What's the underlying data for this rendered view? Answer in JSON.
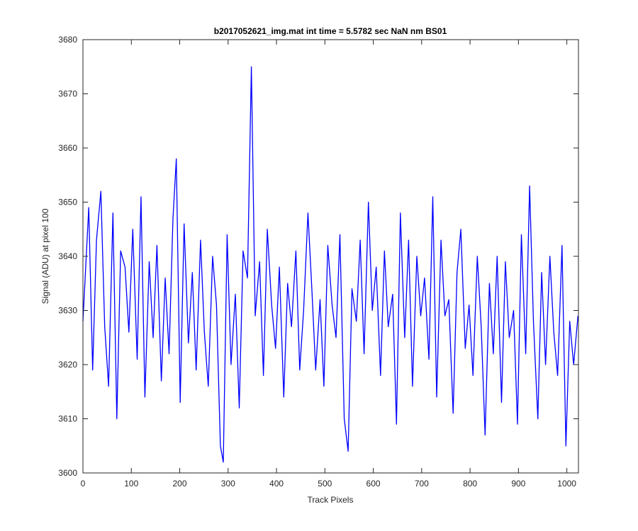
{
  "chart_data": {
    "type": "line",
    "title": "b2017052621_img.mat int time = 5.5782 sec  NaN nm BS01",
    "xlabel": "Track Pixels",
    "ylabel": "Signal (ADU) at pixel 100",
    "xlim": [
      0,
      1024
    ],
    "ylim": [
      3600,
      3680
    ],
    "xticks": [
      0,
      100,
      200,
      300,
      400,
      500,
      600,
      700,
      800,
      900,
      1000
    ],
    "yticks": [
      3600,
      3610,
      3620,
      3630,
      3640,
      3650,
      3660,
      3670,
      3680
    ],
    "grid": false,
    "legend": "none",
    "line_color": "#0000ff",
    "series": [
      {
        "x": [
          0,
          12,
          20,
          28,
          37,
          45,
          53,
          62,
          70,
          78,
          87,
          95,
          103,
          112,
          120,
          128,
          137,
          145,
          153,
          162,
          170,
          178,
          186,
          193,
          201,
          209,
          218,
          226,
          234,
          243,
          251,
          259,
          268,
          276,
          284,
          290,
          298,
          306,
          315,
          323,
          331,
          340,
          348,
          356,
          365,
          373,
          381,
          390,
          398,
          406,
          415,
          423,
          431,
          440,
          448,
          456,
          465,
          473,
          481,
          490,
          498,
          506,
          515,
          523,
          531,
          540,
          548,
          556,
          565,
          573,
          581,
          590,
          598,
          606,
          615,
          623,
          631,
          640,
          648,
          656,
          665,
          673,
          681,
          690,
          698,
          706,
          715,
          723,
          731,
          740,
          748,
          756,
          765,
          773,
          781,
          790,
          798,
          806,
          815,
          823,
          831,
          840,
          848,
          856,
          865,
          873,
          881,
          890,
          898,
          906,
          915,
          923,
          931,
          940,
          948,
          956,
          965,
          973,
          981,
          990,
          998,
          1006,
          1014,
          1023
        ],
        "y": [
          3628,
          3649,
          3619,
          3643,
          3652,
          3627,
          3616,
          3648,
          3610,
          3641,
          3638,
          3626,
          3645,
          3621,
          3651,
          3614,
          3639,
          3625,
          3642,
          3617,
          3636,
          3622,
          3647,
          3658,
          3613,
          3646,
          3624,
          3637,
          3619,
          3643,
          3626,
          3616,
          3640,
          3631,
          3605,
          3602,
          3644,
          3620,
          3633,
          3612,
          3641,
          3636,
          3675,
          3629,
          3639,
          3618,
          3645,
          3631,
          3623,
          3638,
          3614,
          3635,
          3627,
          3641,
          3619,
          3630,
          3648,
          3634,
          3619,
          3632,
          3616,
          3642,
          3631,
          3625,
          3644,
          3610,
          3604,
          3634,
          3628,
          3643,
          3622,
          3650,
          3630,
          3638,
          3618,
          3641,
          3627,
          3633,
          3609,
          3648,
          3625,
          3643,
          3616,
          3640,
          3629,
          3636,
          3621,
          3651,
          3614,
          3643,
          3629,
          3632,
          3611,
          3637,
          3645,
          3623,
          3631,
          3618,
          3640,
          3627,
          3607,
          3635,
          3622,
          3640,
          3613,
          3639,
          3625,
          3630,
          3609,
          3644,
          3622,
          3653,
          3628,
          3610,
          3637,
          3620,
          3640,
          3626,
          3618,
          3642,
          3605,
          3628,
          3620,
          3629
        ]
      }
    ]
  }
}
